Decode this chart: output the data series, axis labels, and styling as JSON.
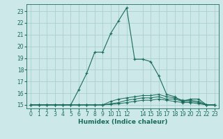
{
  "xlabel": "Humidex (Indice chaleur)",
  "bg_color": "#cce8e8",
  "grid_color": "#aacfcf",
  "line_color": "#1a6b5a",
  "xlim": [
    -0.5,
    23.5
  ],
  "ylim": [
    14.7,
    23.6
  ],
  "yticks": [
    15,
    16,
    17,
    18,
    19,
    20,
    21,
    22,
    23
  ],
  "xticks": [
    0,
    1,
    2,
    3,
    4,
    5,
    6,
    7,
    8,
    9,
    10,
    11,
    12,
    14,
    15,
    16,
    17,
    18,
    19,
    20,
    21,
    22,
    23
  ],
  "xtick_labels": [
    "0",
    "1",
    "2",
    "3",
    "4",
    "5",
    "6",
    "7",
    "8",
    "9",
    "10",
    "11",
    "12",
    "14",
    "15",
    "16",
    "17",
    "18",
    "19",
    "20",
    "21",
    "22",
    "23"
  ],
  "line1_x": [
    0,
    1,
    2,
    3,
    4,
    5,
    6,
    7,
    8,
    9,
    10,
    11,
    12,
    13,
    14,
    15,
    16,
    17,
    18,
    19,
    20,
    21,
    22,
    23
  ],
  "line1_y": [
    15.0,
    15.0,
    15.0,
    15.0,
    15.0,
    15.0,
    16.3,
    17.7,
    19.5,
    19.5,
    21.1,
    22.2,
    23.3,
    18.9,
    18.9,
    18.7,
    17.5,
    15.9,
    15.7,
    15.3,
    15.5,
    15.5,
    15.0,
    15.0
  ],
  "line2_x": [
    0,
    1,
    2,
    3,
    4,
    5,
    6,
    7,
    8,
    9,
    10,
    11,
    12,
    13,
    14,
    15,
    16,
    17,
    18,
    19,
    20,
    21,
    22,
    23
  ],
  "line2_y": [
    15.0,
    15.0,
    15.0,
    15.0,
    15.0,
    15.0,
    15.0,
    15.0,
    15.0,
    15.0,
    15.3,
    15.5,
    15.6,
    15.7,
    15.8,
    15.8,
    15.9,
    15.7,
    15.6,
    15.4,
    15.4,
    15.3,
    15.0,
    15.0
  ],
  "line3_x": [
    0,
    1,
    2,
    3,
    4,
    5,
    6,
    7,
    8,
    9,
    10,
    11,
    12,
    13,
    14,
    15,
    16,
    17,
    18,
    19,
    20,
    21,
    22,
    23
  ],
  "line3_y": [
    15.0,
    15.0,
    15.0,
    15.0,
    15.0,
    15.0,
    15.0,
    15.0,
    15.0,
    15.0,
    15.1,
    15.2,
    15.4,
    15.5,
    15.6,
    15.6,
    15.7,
    15.5,
    15.5,
    15.3,
    15.3,
    15.2,
    15.0,
    15.0
  ],
  "line4_x": [
    0,
    1,
    2,
    3,
    4,
    5,
    6,
    7,
    8,
    9,
    10,
    11,
    12,
    13,
    14,
    15,
    16,
    17,
    18,
    19,
    20,
    21,
    22,
    23
  ],
  "line4_y": [
    15.0,
    15.0,
    15.0,
    15.0,
    15.0,
    15.0,
    15.0,
    15.0,
    15.0,
    15.0,
    15.05,
    15.1,
    15.2,
    15.3,
    15.4,
    15.4,
    15.5,
    15.4,
    15.3,
    15.2,
    15.2,
    15.1,
    15.0,
    15.0
  ]
}
